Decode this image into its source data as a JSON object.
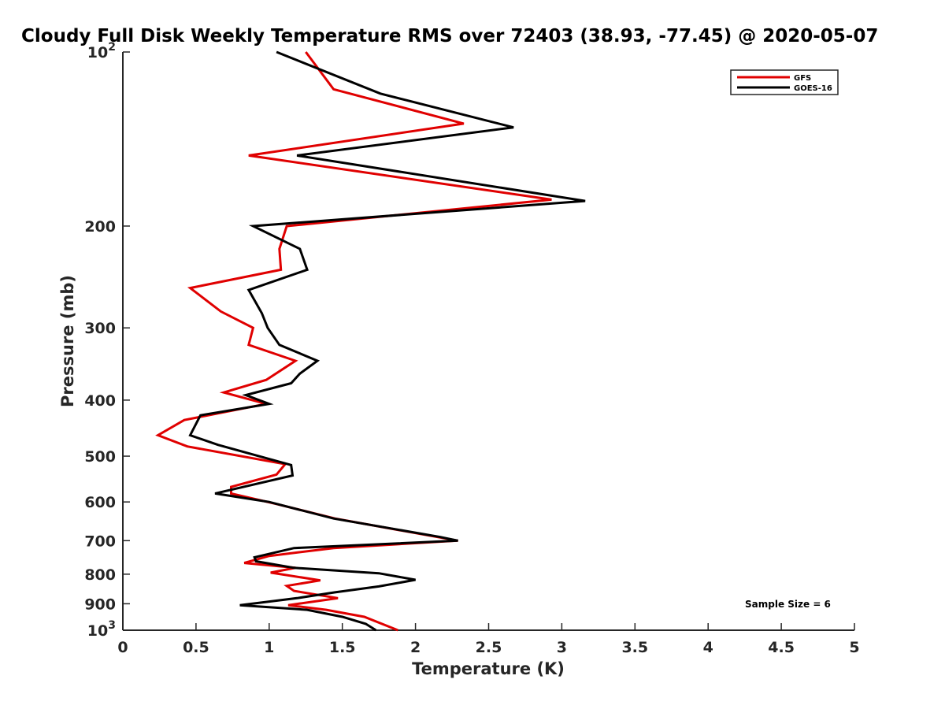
{
  "chart_data": {
    "type": "line",
    "title": "Cloudy Full Disk Weekly Temperature RMS over 72403 (38.93, -77.45) @ 2020-05-07",
    "xlabel": "Temperature (K)",
    "ylabel": "Pressure (mb)",
    "xlim": [
      0,
      5
    ],
    "ylim": [
      1000,
      100
    ],
    "yscale": "log",
    "y_reversed": true,
    "grid": false,
    "legend_position": "top-right",
    "x_ticks": [
      "0",
      "0.5",
      "1",
      "1.5",
      "2",
      "2.5",
      "3",
      "3.5",
      "4",
      "4.5",
      "5"
    ],
    "y_ticks": [
      {
        "value": 100,
        "base": "10",
        "exp": "2"
      },
      {
        "value": 200,
        "label": "200"
      },
      {
        "value": 300,
        "label": "300"
      },
      {
        "value": 400,
        "label": "400"
      },
      {
        "value": 500,
        "label": "500"
      },
      {
        "value": 600,
        "label": "600"
      },
      {
        "value": 700,
        "label": "700"
      },
      {
        "value": 800,
        "label": "800"
      },
      {
        "value": 900,
        "label": "900"
      },
      {
        "value": 1000,
        "base": "10",
        "exp": "3"
      }
    ],
    "series": [
      {
        "name": "GFS",
        "color": "#e00000",
        "points": [
          [
            1.25,
            100
          ],
          [
            1.44,
            116
          ],
          [
            2.33,
            133
          ],
          [
            0.86,
            151
          ],
          [
            2.93,
            180
          ],
          [
            1.12,
            200
          ],
          [
            1.07,
            219
          ],
          [
            1.08,
            238
          ],
          [
            0.46,
            256
          ],
          [
            0.67,
            281
          ],
          [
            0.89,
            300
          ],
          [
            0.86,
            321
          ],
          [
            1.18,
            342
          ],
          [
            0.98,
            369
          ],
          [
            0.69,
            388
          ],
          [
            0.98,
            406
          ],
          [
            0.42,
            433
          ],
          [
            0.24,
            460
          ],
          [
            0.44,
            481
          ],
          [
            1.11,
            516
          ],
          [
            1.05,
            538
          ],
          [
            0.74,
            565
          ],
          [
            0.74,
            580
          ],
          [
            1.05,
            605
          ],
          [
            1.45,
            641
          ],
          [
            2.15,
            690
          ],
          [
            2.29,
            700
          ],
          [
            1.44,
            721
          ],
          [
            1.0,
            744
          ],
          [
            0.83,
            765
          ],
          [
            1.18,
            780
          ],
          [
            1.01,
            795
          ],
          [
            1.35,
            820
          ],
          [
            1.12,
            838
          ],
          [
            1.17,
            855
          ],
          [
            1.47,
            880
          ],
          [
            1.13,
            905
          ],
          [
            1.39,
            922
          ],
          [
            1.65,
            948
          ],
          [
            1.88,
            1000
          ]
        ]
      },
      {
        "name": "GOES-16",
        "color": "#000000",
        "points": [
          [
            1.05,
            100
          ],
          [
            1.76,
            118
          ],
          [
            2.67,
            135
          ],
          [
            1.19,
            151
          ],
          [
            3.16,
            181
          ],
          [
            0.89,
            200
          ],
          [
            1.21,
            219
          ],
          [
            1.26,
            238
          ],
          [
            0.86,
            258
          ],
          [
            0.95,
            283
          ],
          [
            0.99,
            300
          ],
          [
            1.07,
            321
          ],
          [
            1.33,
            342
          ],
          [
            1.21,
            360
          ],
          [
            1.15,
            374
          ],
          [
            0.84,
            392
          ],
          [
            1.0,
            406
          ],
          [
            0.53,
            425
          ],
          [
            0.46,
            460
          ],
          [
            0.65,
            478
          ],
          [
            1.15,
            518
          ],
          [
            1.16,
            540
          ],
          [
            0.63,
            580
          ],
          [
            1.0,
            600
          ],
          [
            1.44,
            641
          ],
          [
            2.17,
            690
          ],
          [
            2.29,
            700
          ],
          [
            1.17,
            721
          ],
          [
            0.9,
            748
          ],
          [
            0.91,
            760
          ],
          [
            1.17,
            780
          ],
          [
            1.75,
            797
          ],
          [
            2.0,
            818
          ],
          [
            1.75,
            840
          ],
          [
            1.45,
            860
          ],
          [
            1.19,
            880
          ],
          [
            0.8,
            905
          ],
          [
            1.26,
            922
          ],
          [
            1.5,
            948
          ],
          [
            1.66,
            975
          ],
          [
            1.73,
            1000
          ]
        ]
      }
    ],
    "annotation": "Sample Size = 6"
  }
}
